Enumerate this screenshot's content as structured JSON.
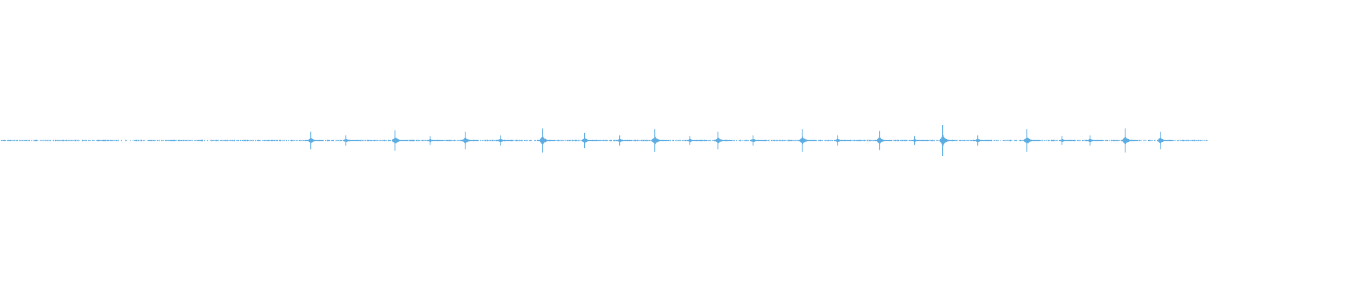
{
  "waveform": {
    "color": "#5dade2",
    "bin_count": 172,
    "noise_level": 0.004,
    "silent_gaps": [
      [
        17,
        19
      ],
      [
        29,
        30
      ],
      [
        44,
        45
      ]
    ],
    "events": [
      {
        "bin": 44,
        "amp": 0.062
      },
      {
        "bin": 49,
        "amp": 0.037
      },
      {
        "bin": 56,
        "amp": 0.073
      },
      {
        "bin": 61,
        "amp": 0.031
      },
      {
        "bin": 66,
        "amp": 0.062
      },
      {
        "bin": 71,
        "amp": 0.037
      },
      {
        "bin": 77,
        "amp": 0.086
      },
      {
        "bin": 83,
        "amp": 0.055
      },
      {
        "bin": 88,
        "amp": 0.037
      },
      {
        "bin": 93,
        "amp": 0.08
      },
      {
        "bin": 98,
        "amp": 0.031
      },
      {
        "bin": 102,
        "amp": 0.062
      },
      {
        "bin": 107,
        "amp": 0.037
      },
      {
        "bin": 114,
        "amp": 0.08
      },
      {
        "bin": 119,
        "amp": 0.037
      },
      {
        "bin": 125,
        "amp": 0.068
      },
      {
        "bin": 130,
        "amp": 0.031
      },
      {
        "bin": 134,
        "amp": 0.11
      },
      {
        "bin": 139,
        "amp": 0.037
      },
      {
        "bin": 146,
        "amp": 0.08
      },
      {
        "bin": 151,
        "amp": 0.031
      },
      {
        "bin": 155,
        "amp": 0.037
      },
      {
        "bin": 160,
        "amp": 0.086
      },
      {
        "bin": 165,
        "amp": 0.062
      }
    ]
  }
}
